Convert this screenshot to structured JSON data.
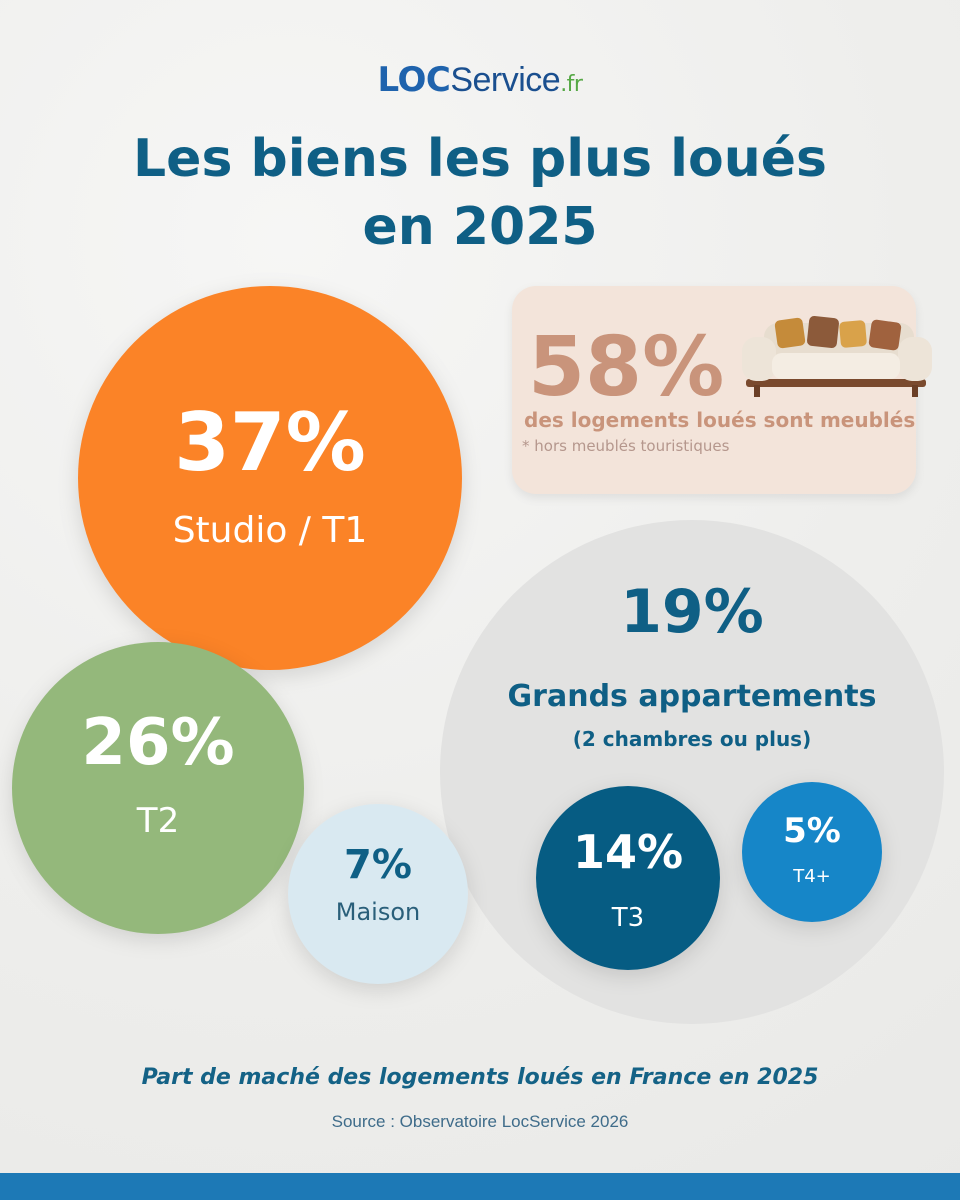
{
  "brand": {
    "loc": "LOC",
    "service": "Service",
    "tld": ".fr"
  },
  "title": {
    "line1": "Les biens les plus loués",
    "line2": "en 2025"
  },
  "furnished_card": {
    "value": "58%",
    "label": "des logements loués sont meublés",
    "note": "* hors meublés touristiques"
  },
  "chart_data": {
    "type": "bubble",
    "title": "Part de maché des logements loués en France en 2025",
    "unit": "%",
    "categories": [
      {
        "label": "Studio / T1",
        "value": 37,
        "display": "37%",
        "color": "#fb8327"
      },
      {
        "label": "T2",
        "value": 26,
        "display": "26%",
        "color": "#94b87b"
      },
      {
        "label": "Maison",
        "value": 7,
        "display": "7%",
        "color": "#d9e9f1"
      },
      {
        "label": "Grands appartements",
        "sub": "(2 chambres ou plus)",
        "value": 19,
        "display": "19%",
        "color": "#e2e2e1",
        "breakdown": [
          {
            "label": "T3",
            "value": 14,
            "display": "14%",
            "color": "#065c83"
          },
          {
            "label": "T4+",
            "value": 5,
            "display": "5%",
            "color": "#1686c8"
          }
        ]
      }
    ]
  },
  "footer": {
    "caption": "Part de maché des logements loués en France en 2025",
    "source": "Source : Observatoire LocService 2026"
  }
}
